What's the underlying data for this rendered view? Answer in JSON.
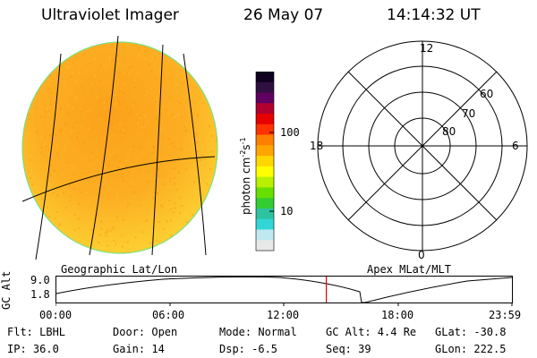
{
  "header": {
    "title": "Ultraviolet Imager",
    "date": "26 May 07",
    "time": "14:14:32 UT"
  },
  "colorbar": {
    "label": "photon cm",
    "exp1": "-2",
    "mid": "s",
    "exp2": "-1",
    "tick_100": "100",
    "tick_10": "10",
    "colors": [
      "#e8e8e8",
      "#bfe9f0",
      "#33d6d6",
      "#2ec2a0",
      "#33cc33",
      "#66e000",
      "#b8f000",
      "#ffff00",
      "#ffd700",
      "#ffa500",
      "#ff7f00",
      "#ff3300",
      "#e60000",
      "#b00030",
      "#600060",
      "#301040",
      "#100020"
    ]
  },
  "left_panel": {
    "caption": "Geographic Lat/Lon",
    "disk_color": "#fcaa1e"
  },
  "right_panel": {
    "caption": "Apex MLat/MLT",
    "mlt_top": "12",
    "mlt_left": "18",
    "mlt_right": "6",
    "mlt_bottom": "0",
    "lat_60": "60",
    "lat_70": "70",
    "lat_80": "80"
  },
  "altitude_plot": {
    "ylabel": "GC Alt",
    "y_top": "9.0",
    "y_bottom": "1.8",
    "x_ticks": [
      "00:00",
      "06:00",
      "12:00",
      "18:00",
      "23:59"
    ],
    "current_time_hours": 14.24,
    "marker_color": "#e00000"
  },
  "info": {
    "filter": "Flt: LBHL",
    "door": "Door: Open",
    "mode": "Mode: Normal",
    "gc_alt": "GC Alt: 4.4 Re",
    "glat": "GLat: -30.8",
    "ip": "IP: 36.0",
    "gain": "Gain: 14",
    "dsp": "Dsp:   -6.5",
    "seq": "Seq: 39",
    "glon": "GLon: 222.5"
  }
}
